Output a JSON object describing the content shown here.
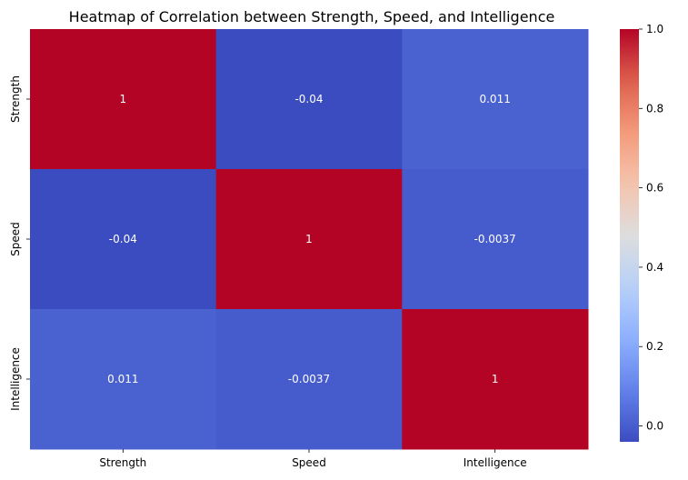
{
  "chart_data": {
    "type": "heatmap",
    "title": "Heatmap of Correlation between Strength, Speed, and Intelligence",
    "x_categories": [
      "Strength",
      "Speed",
      "Intelligence"
    ],
    "y_categories": [
      "Strength",
      "Speed",
      "Intelligence"
    ],
    "values": [
      [
        1,
        -0.04,
        0.011
      ],
      [
        -0.04,
        1,
        -0.0037
      ],
      [
        0.011,
        -0.0037,
        1
      ]
    ],
    "value_labels": [
      [
        "1",
        "-0.04",
        "0.011"
      ],
      [
        "-0.04",
        "1",
        "-0.0037"
      ],
      [
        "0.011",
        "-0.0037",
        "1"
      ]
    ],
    "colormap": "coolwarm",
    "colorbar": {
      "vmin": -0.04,
      "vmax": 1.0,
      "ticks": [
        0.0,
        0.2,
        0.4,
        0.6,
        0.8,
        1.0
      ],
      "tick_labels": [
        "0.0",
        "0.2",
        "0.4",
        "0.6",
        "0.8",
        "1.0"
      ]
    },
    "xlabel": "",
    "ylabel": ""
  }
}
